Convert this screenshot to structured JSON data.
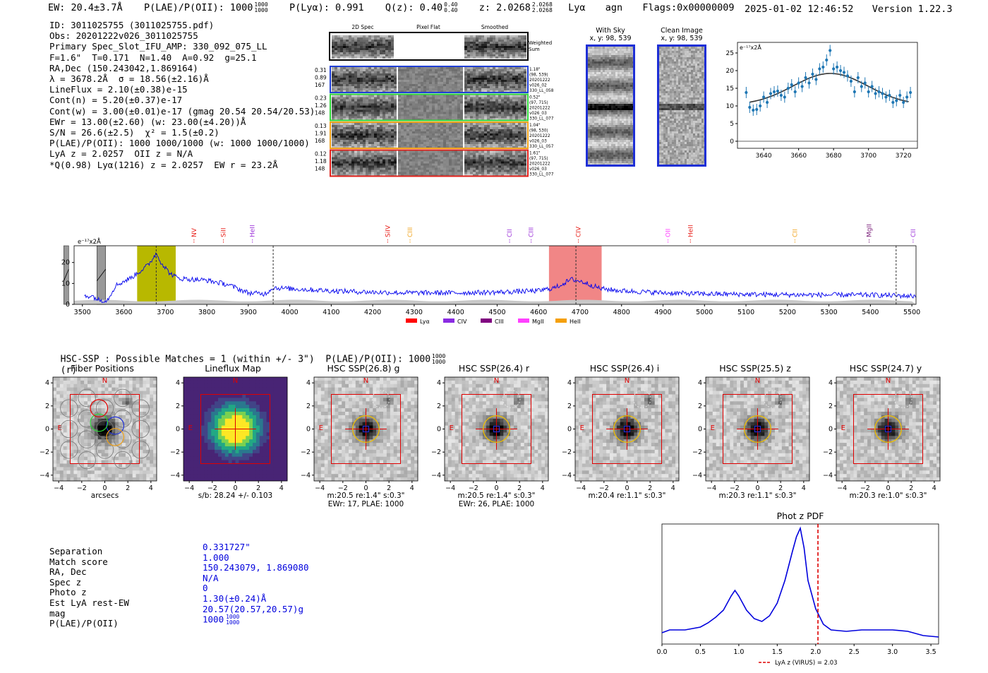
{
  "header": {
    "ew": "EW: 20.4±3.7Å",
    "plae": "P(LAE)/P(OII): 1000",
    "plae_hi": "1000",
    "plae_lo": "1000",
    "plya": "P(Lyα): 0.991",
    "qz": "Q(z): 0.40",
    "qz_hi": "0.40",
    "qz_lo": "0.40",
    "z": "z: 2.0268",
    "z_hi": "2.0268",
    "z_lo": "2.0268",
    "line": "Lyα",
    "cls": "agn",
    "flags": "Flags:0x00000009",
    "timestamp": "2025-01-02 12:46:52",
    "version": "Version 1.22.3"
  },
  "info": {
    "lines": [
      "ID: 3011025755 (3011025755.pdf)",
      "Obs: 20201222v026_3011025755",
      "Primary Spec_Slot_IFU_AMP: 330_092_075_LL",
      "F=1.6\"  T=0.171  N=1.40  A=0.92  g=25.1",
      "RA,Dec (150.243042,1.869164)",
      "λ = 3678.2Å  σ = 18.56(±2.16)Å",
      "LineFlux = 2.10(±0.38)e-15",
      "Cont(n) = 5.20(±0.37)e-17",
      "Cont(w) = 3.00(±0.01)e-17 (gmag 20.54 20.54/20.53)",
      "EWr = 13.00(±2.60) (w: 23.00(±4.20))Å",
      "S/N = 26.6(±2.5)  χ² = 1.5(±0.2)",
      "P(LAE)/P(OII): 1000 1000/1000 (w: 1000 1000/1000)",
      "LyA z = 2.0257  OII z = N/A",
      "*Q(0.98) Lyα(1216) z = 2.0257  EW r = 23.2Å"
    ]
  },
  "fibers": {
    "headers": [
      "2D Spec",
      "Pixel Flat",
      "Smoothed"
    ],
    "weighted_label": "Weighted Sum",
    "rows": [
      {
        "left": [
          "0.31",
          "0.89",
          "167"
        ],
        "right": [
          "1.18\"",
          "(98, 539)",
          "20201222",
          "v026_02",
          "330_LL_058"
        ],
        "color": "#1f3fd6"
      },
      {
        "left": [
          "0.23",
          "1.26",
          "148"
        ],
        "right": [
          "0.52\"",
          "(97, 715)",
          "20201222",
          "v026_03",
          "330_LL_077"
        ],
        "color": "#2fd63a"
      },
      {
        "left": [
          "0.13",
          "1.91",
          "168"
        ],
        "right": [
          "1.04\"",
          "(98, 530)",
          "20201222",
          "v026_03",
          "330_LL_057"
        ],
        "color": "#f0a21a"
      },
      {
        "left": [
          "0.12",
          "1.18",
          "148"
        ],
        "right": [
          "1.61\"",
          "(97, 715)",
          "20201222",
          "v026_03",
          "330_LL_077"
        ],
        "color": "#e0201a"
      }
    ]
  },
  "sky": {
    "with_sky_title": "With Sky",
    "clean_title": "Clean Image",
    "coords": "x, y: 98, 539"
  },
  "zoom_chart": {
    "ylabel": "e⁻¹⁷x2Å"
  },
  "spectrum": {
    "ylabel": "e⁻¹⁷x2Å",
    "line_markers": [
      {
        "label": "NV",
        "wave": 3769,
        "color": "#e8201a"
      },
      {
        "label": "SiII",
        "wave": 3840,
        "color": "#e8201a"
      },
      {
        "label": "HeII",
        "wave": 3910,
        "color": "#9b30d9"
      },
      {
        "label": "SiIV",
        "wave": 4236,
        "color": "#e8201a"
      },
      {
        "label": "CIII",
        "wave": 4290,
        "color": "#f0a21a"
      },
      {
        "label": "CII",
        "wave": 4530,
        "color": "#9b30d9"
      },
      {
        "label": "CIII",
        "wave": 4582,
        "color": "#9b30d9"
      },
      {
        "label": "CIV",
        "wave": 4696,
        "color": "#e8201a"
      },
      {
        "label": "OII",
        "wave": 4912,
        "color": "#ff40ff"
      },
      {
        "label": "HeII",
        "wave": 4966,
        "color": "#e8201a"
      },
      {
        "label": "CII",
        "wave": 5218,
        "color": "#f0a21a"
      },
      {
        "label": "MgII",
        "wave": 5397,
        "color": "#7a1f7a"
      },
      {
        "label": "CII",
        "wave": 5503,
        "color": "#9b30d9"
      }
    ],
    "legend": [
      {
        "label": "Lyα",
        "color": "#ff0000"
      },
      {
        "label": "CIV",
        "color": "#8a2be2"
      },
      {
        "label": "CIII",
        "color": "#800080"
      },
      {
        "label": "MgII",
        "color": "#ff40ff"
      },
      {
        "label": "HeII",
        "color": "#f5a00a"
      }
    ]
  },
  "matches": {
    "text": "HSC-SSP : Possible Matches = 1 (within +/- 3\")  P(LAE)/P(OII): 1000",
    "frac_hi": "1000",
    "frac_lo": "1000",
    "suffix": "(r)"
  },
  "cutouts": [
    {
      "title": "Fiber Positions",
      "xlabel": "arcsecs",
      "caption": "",
      "kind": "fiber"
    },
    {
      "title": "Lineflux Map",
      "xlabel": "",
      "caption": "s/b: 28.24 +/- 0.103",
      "kind": "lineflux"
    },
    {
      "title": "HSC SSP(26.8) g",
      "xlabel": "",
      "caption": "m:20.5  re:1.4\"  s:0.3\"\nEWr: 17, PLAE: 1000",
      "kind": "hsc"
    },
    {
      "title": "HSC SSP(26.4) r",
      "xlabel": "",
      "caption": "m:20.5  re:1.4\"  s:0.3\"\nEWr: 26, PLAE: 1000",
      "kind": "hsc"
    },
    {
      "title": "HSC SSP(26.4) i",
      "xlabel": "",
      "caption": "m:20.4  re:1.1\"  s:0.3\"",
      "kind": "hsc"
    },
    {
      "title": "HSC SSP(25.5) z",
      "xlabel": "",
      "caption": "m:20.3  re:1.1\"  s:0.3\"",
      "kind": "hsc"
    },
    {
      "title": "HSC SSP(24.7) y",
      "xlabel": "",
      "caption": "m:20.3  re:1.0\"  s:0.3\"",
      "kind": "hsc"
    }
  ],
  "cutout_ticks": [
    "−4",
    "−2",
    "0",
    "2",
    "4"
  ],
  "separation": {
    "labels": [
      "Separation",
      "Match score",
      "RA, Dec",
      "Spec z",
      "Photo z",
      "Est LyA rest-EW",
      "mag",
      "P(LAE)/P(OII)"
    ],
    "values": [
      "0.331727\"",
      "1.000",
      "150.243079, 1.869080",
      "N/A",
      "0",
      "1.30(±0.24)Å",
      "20.57(20.57,20.57)g",
      "1000"
    ],
    "plae_hi": "1000",
    "plae_lo": "1000"
  },
  "chart_data": [
    {
      "type": "scatter",
      "title": "",
      "ylabel": "e⁻¹⁷x2Å",
      "xlim": [
        3625,
        3728
      ],
      "ylim": [
        -2,
        28
      ],
      "xticks": [
        3640,
        3660,
        3680,
        3700,
        3720
      ],
      "yticks": [
        0,
        5,
        10,
        15,
        20,
        25
      ],
      "x": [
        3630,
        3632,
        3634,
        3636,
        3638,
        3640,
        3642,
        3644,
        3646,
        3648,
        3650,
        3652,
        3654,
        3656,
        3658,
        3660,
        3662,
        3664,
        3666,
        3668,
        3670,
        3672,
        3674,
        3676,
        3678,
        3680,
        3682,
        3684,
        3686,
        3688,
        3690,
        3692,
        3694,
        3696,
        3698,
        3700,
        3702,
        3704,
        3706,
        3708,
        3710,
        3712,
        3714,
        3716,
        3718,
        3720,
        3722,
        3724
      ],
      "y": [
        13.8,
        9.6,
        8.8,
        9.0,
        10.0,
        12.5,
        11.0,
        13.5,
        14.0,
        14.2,
        13.0,
        12.5,
        15.0,
        16.0,
        14.0,
        16.5,
        15.5,
        18.0,
        16.5,
        19.0,
        17.5,
        20.5,
        21.0,
        23.0,
        25.7,
        20.5,
        21.0,
        20.0,
        19.5,
        18.5,
        17.0,
        14.0,
        18.0,
        15.5,
        16.5,
        14.0,
        15.5,
        13.5,
        14.0,
        13.5,
        12.5,
        13.0,
        11.0,
        11.5,
        13.0,
        11.0,
        12.5,
        13.8
      ],
      "yerr": 1.6,
      "fit": {
        "amp": 9.0,
        "center": 3678.2,
        "sigma": 18.56,
        "cont": 10.2
      }
    },
    {
      "type": "line",
      "title": "",
      "ylabel": "e⁻¹⁷x2Å",
      "xlim": [
        3480,
        5510
      ],
      "ylim": [
        0,
        28
      ],
      "xticks": [
        3500,
        3600,
        3700,
        3800,
        3900,
        4000,
        4100,
        4200,
        4300,
        4400,
        4500,
        4600,
        4700,
        4800,
        4900,
        5000,
        5100,
        5200,
        5300,
        5400,
        5500
      ],
      "yticks": [
        0,
        10,
        20
      ],
      "knots": [
        [
          3520,
          4.5
        ],
        [
          3540,
          2.0
        ],
        [
          3560,
          2.0
        ],
        [
          3580,
          9.0
        ],
        [
          3600,
          11.0
        ],
        [
          3620,
          13.0
        ],
        [
          3640,
          16.0
        ],
        [
          3660,
          19.0
        ],
        [
          3678,
          24.5
        ],
        [
          3690,
          20.0
        ],
        [
          3710,
          15.0
        ],
        [
          3730,
          12.5
        ],
        [
          3760,
          12.0
        ],
        [
          3800,
          11.5
        ],
        [
          3850,
          9.5
        ],
        [
          3900,
          5.5
        ],
        [
          3940,
          5.0
        ],
        [
          3960,
          8.0
        ],
        [
          4000,
          7.5
        ],
        [
          4100,
          6.5
        ],
        [
          4200,
          5.8
        ],
        [
          4300,
          5.5
        ],
        [
          4400,
          5.5
        ],
        [
          4500,
          5.8
        ],
        [
          4600,
          6.5
        ],
        [
          4640,
          8.0
        ],
        [
          4680,
          12.0
        ],
        [
          4710,
          10.5
        ],
        [
          4750,
          7.5
        ],
        [
          4800,
          6.5
        ],
        [
          4900,
          5.5
        ],
        [
          5000,
          5.0
        ],
        [
          5100,
          4.8
        ],
        [
          5200,
          4.6
        ],
        [
          5300,
          4.5
        ],
        [
          5400,
          4.5
        ],
        [
          5500,
          4.0
        ]
      ],
      "highlight_regions": [
        [
          3632,
          3725,
          "olive"
        ],
        [
          4625,
          4752,
          "red"
        ]
      ],
      "masked_regions": [
        [
          3535,
          3556
        ],
        [
          3455,
          3467
        ]
      ],
      "dashed_lines": [
        3678,
        3960,
        4690,
        5462
      ],
      "legend_labels": [
        "Lyα",
        "CIV",
        "CIII",
        "MgII",
        "HeII"
      ]
    },
    {
      "type": "line",
      "title": "Phot z PDF",
      "xlim": [
        0.0,
        3.6
      ],
      "xticks": [
        0.0,
        0.5,
        1.0,
        1.5,
        2.0,
        2.5,
        3.0,
        3.5
      ],
      "x": [
        0.0,
        0.1,
        0.2,
        0.3,
        0.4,
        0.5,
        0.6,
        0.7,
        0.8,
        0.9,
        0.95,
        1.0,
        1.1,
        1.2,
        1.3,
        1.4,
        1.5,
        1.6,
        1.7,
        1.75,
        1.8,
        1.85,
        1.9,
        2.0,
        2.1,
        2.2,
        2.4,
        2.6,
        2.8,
        3.0,
        3.2,
        3.4,
        3.6
      ],
      "y": [
        0.08,
        0.1,
        0.1,
        0.1,
        0.11,
        0.12,
        0.15,
        0.19,
        0.24,
        0.34,
        0.38,
        0.34,
        0.24,
        0.18,
        0.16,
        0.2,
        0.29,
        0.45,
        0.66,
        0.76,
        0.82,
        0.68,
        0.45,
        0.25,
        0.14,
        0.1,
        0.09,
        0.1,
        0.1,
        0.1,
        0.09,
        0.06,
        0.05
      ],
      "vline": 2.03,
      "vline_label": "LyA z (VIRUS) = 2.03"
    }
  ]
}
